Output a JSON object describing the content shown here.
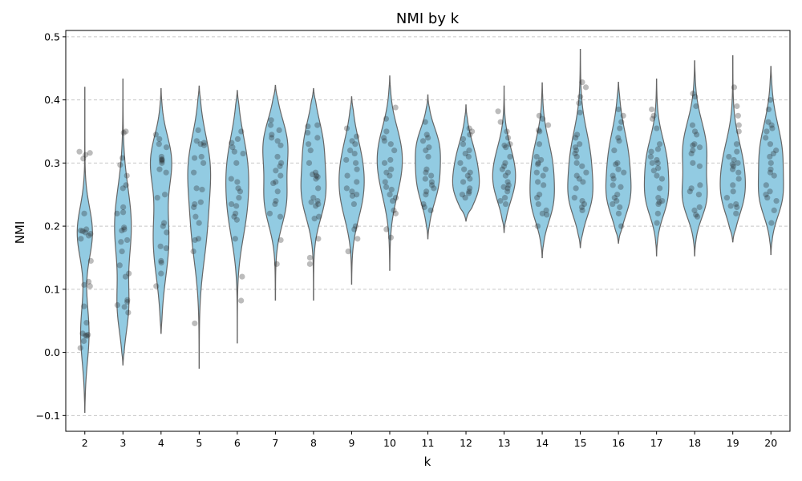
{
  "chart_data": {
    "type": "violin",
    "title": "NMI by k",
    "xlabel": "k",
    "ylabel": "NMI",
    "categories": [
      "2",
      "3",
      "4",
      "5",
      "6",
      "7",
      "8",
      "9",
      "10",
      "11",
      "12",
      "13",
      "14",
      "15",
      "16",
      "17",
      "18",
      "19",
      "20"
    ],
    "ylim": [
      -0.125,
      0.51
    ],
    "yticks": [
      -0.1,
      0.0,
      0.1,
      0.2,
      0.3,
      0.4,
      0.5
    ],
    "ytick_labels": [
      "−0.1",
      "0.0",
      "0.1",
      "0.2",
      "0.3",
      "0.4",
      "0.5"
    ],
    "grid": "y-dashed",
    "colors": {
      "violin_fill": "#92cbe2",
      "violin_edge": "#666666",
      "points": "#222222"
    },
    "violins": [
      {
        "k": "2",
        "min": -0.095,
        "max": 0.42,
        "modes": [
          [
            0.19,
            0.04,
            1.0
          ],
          [
            0.03,
            0.045,
            0.55
          ]
        ],
        "maxw": 0.2
      },
      {
        "k": "3",
        "min": -0.02,
        "max": 0.433,
        "modes": [
          [
            0.2,
            0.06,
            1.0
          ],
          [
            0.07,
            0.04,
            0.6
          ]
        ],
        "maxw": 0.22
      },
      {
        "k": "4",
        "min": 0.03,
        "max": 0.418,
        "modes": [
          [
            0.305,
            0.04,
            1.0
          ],
          [
            0.18,
            0.06,
            0.8
          ]
        ],
        "maxw": 0.28
      },
      {
        "k": "5",
        "min": -0.025,
        "max": 0.422,
        "modes": [
          [
            0.3,
            0.05,
            1.0
          ],
          [
            0.2,
            0.06,
            0.8
          ]
        ],
        "maxw": 0.3
      },
      {
        "k": "6",
        "min": 0.015,
        "max": 0.415,
        "modes": [
          [
            0.3,
            0.05,
            1.0
          ],
          [
            0.22,
            0.05,
            0.85
          ]
        ],
        "maxw": 0.3
      },
      {
        "k": "7",
        "min": 0.083,
        "max": 0.423,
        "modes": [
          [
            0.33,
            0.04,
            1.0
          ],
          [
            0.24,
            0.04,
            0.9
          ]
        ],
        "maxw": 0.33
      },
      {
        "k": "8",
        "min": 0.083,
        "max": 0.418,
        "modes": [
          [
            0.25,
            0.04,
            1.0
          ],
          [
            0.33,
            0.04,
            0.8
          ]
        ],
        "maxw": 0.33
      },
      {
        "k": "9",
        "min": 0.108,
        "max": 0.405,
        "modes": [
          [
            0.3,
            0.045,
            1.0
          ],
          [
            0.24,
            0.04,
            0.8
          ]
        ],
        "maxw": 0.33
      },
      {
        "k": "10",
        "min": 0.13,
        "max": 0.438,
        "modes": [
          [
            0.28,
            0.045,
            1.0
          ],
          [
            0.33,
            0.04,
            0.8
          ]
        ],
        "maxw": 0.33
      },
      {
        "k": "11",
        "min": 0.18,
        "max": 0.408,
        "modes": [
          [
            0.27,
            0.035,
            1.0
          ],
          [
            0.33,
            0.03,
            0.9
          ]
        ],
        "maxw": 0.33
      },
      {
        "k": "12",
        "min": 0.208,
        "max": 0.392,
        "modes": [
          [
            0.3,
            0.035,
            1.0
          ],
          [
            0.255,
            0.025,
            0.8
          ]
        ],
        "maxw": 0.35
      },
      {
        "k": "13",
        "min": 0.19,
        "max": 0.422,
        "modes": [
          [
            0.3,
            0.035,
            1.0
          ],
          [
            0.26,
            0.03,
            0.8
          ]
        ],
        "maxw": 0.3
      },
      {
        "k": "14",
        "min": 0.15,
        "max": 0.427,
        "modes": [
          [
            0.29,
            0.045,
            1.0
          ],
          [
            0.23,
            0.03,
            0.6
          ]
        ],
        "maxw": 0.32
      },
      {
        "k": "15",
        "min": 0.166,
        "max": 0.48,
        "modes": [
          [
            0.3,
            0.05,
            1.0
          ],
          [
            0.24,
            0.03,
            0.6
          ]
        ],
        "maxw": 0.33
      },
      {
        "k": "16",
        "min": 0.173,
        "max": 0.428,
        "modes": [
          [
            0.3,
            0.05,
            1.0
          ],
          [
            0.24,
            0.03,
            0.6
          ]
        ],
        "maxw": 0.33
      },
      {
        "k": "17",
        "min": 0.153,
        "max": 0.433,
        "modes": [
          [
            0.3,
            0.04,
            1.0
          ],
          [
            0.24,
            0.03,
            0.75
          ]
        ],
        "maxw": 0.32
      },
      {
        "k": "18",
        "min": 0.153,
        "max": 0.462,
        "modes": [
          [
            0.32,
            0.045,
            1.0
          ],
          [
            0.24,
            0.03,
            0.8
          ]
        ],
        "maxw": 0.33
      },
      {
        "k": "19",
        "min": 0.175,
        "max": 0.47,
        "modes": [
          [
            0.29,
            0.045,
            1.0
          ],
          [
            0.24,
            0.03,
            0.5
          ]
        ],
        "maxw": 0.33
      },
      {
        "k": "20",
        "min": 0.155,
        "max": 0.453,
        "modes": [
          [
            0.31,
            0.05,
            1.0
          ],
          [
            0.24,
            0.03,
            0.6
          ]
        ],
        "maxw": 0.33
      }
    ],
    "points": {
      "2": [
        0.316,
        0.318,
        0.313,
        0.307,
        0.22,
        0.195,
        0.193,
        0.192,
        0.19,
        0.188,
        0.185,
        0.18,
        0.145,
        0.112,
        0.107,
        0.105,
        0.073,
        0.047,
        0.03,
        0.028,
        0.027,
        0.026,
        0.018,
        0.007
      ],
      "3": [
        0.35,
        0.348,
        0.308,
        0.297,
        0.28,
        0.265,
        0.26,
        0.23,
        0.222,
        0.22,
        0.198,
        0.195,
        0.193,
        0.178,
        0.175,
        0.16,
        0.138,
        0.125,
        0.12,
        0.083,
        0.08,
        0.075,
        0.072,
        0.063
      ],
      "4": [
        0.345,
        0.338,
        0.33,
        0.325,
        0.31,
        0.306,
        0.305,
        0.303,
        0.3,
        0.29,
        0.285,
        0.25,
        0.245,
        0.205,
        0.2,
        0.19,
        0.168,
        0.165,
        0.145,
        0.142,
        0.125,
        0.105
      ],
      "5": [
        0.352,
        0.335,
        0.332,
        0.33,
        0.328,
        0.31,
        0.308,
        0.3,
        0.285,
        0.26,
        0.258,
        0.238,
        0.235,
        0.23,
        0.215,
        0.205,
        0.18,
        0.178,
        0.16,
        0.046
      ],
      "6": [
        0.35,
        0.338,
        0.332,
        0.325,
        0.318,
        0.315,
        0.3,
        0.275,
        0.27,
        0.26,
        0.255,
        0.245,
        0.235,
        0.232,
        0.22,
        0.215,
        0.21,
        0.18,
        0.12,
        0.082
      ],
      "7": [
        0.368,
        0.36,
        0.352,
        0.345,
        0.34,
        0.335,
        0.328,
        0.31,
        0.3,
        0.295,
        0.288,
        0.28,
        0.27,
        0.268,
        0.255,
        0.24,
        0.235,
        0.22,
        0.215,
        0.178,
        0.14
      ],
      "8": [
        0.36,
        0.358,
        0.348,
        0.34,
        0.33,
        0.32,
        0.3,
        0.285,
        0.282,
        0.28,
        0.278,
        0.275,
        0.26,
        0.245,
        0.24,
        0.238,
        0.235,
        0.232,
        0.215,
        0.212,
        0.18,
        0.15,
        0.14
      ],
      "9": [
        0.355,
        0.342,
        0.335,
        0.33,
        0.32,
        0.315,
        0.305,
        0.3,
        0.29,
        0.28,
        0.27,
        0.26,
        0.255,
        0.25,
        0.248,
        0.235,
        0.2,
        0.195,
        0.18,
        0.16
      ],
      "10": [
        0.388,
        0.37,
        0.35,
        0.34,
        0.335,
        0.33,
        0.32,
        0.305,
        0.3,
        0.29,
        0.285,
        0.28,
        0.27,
        0.262,
        0.258,
        0.25,
        0.245,
        0.24,
        0.225,
        0.22,
        0.195,
        0.182
      ],
      "11": [
        0.365,
        0.345,
        0.34,
        0.335,
        0.325,
        0.32,
        0.31,
        0.29,
        0.285,
        0.28,
        0.275,
        0.27,
        0.265,
        0.26,
        0.255,
        0.25,
        0.235,
        0.23,
        0.225
      ],
      "12": [
        0.355,
        0.35,
        0.345,
        0.338,
        0.33,
        0.32,
        0.315,
        0.31,
        0.3,
        0.29,
        0.285,
        0.28,
        0.275,
        0.27,
        0.26,
        0.255,
        0.252,
        0.25,
        0.245
      ],
      "13": [
        0.382,
        0.365,
        0.35,
        0.34,
        0.33,
        0.328,
        0.325,
        0.31,
        0.3,
        0.295,
        0.29,
        0.285,
        0.28,
        0.27,
        0.265,
        0.262,
        0.26,
        0.255,
        0.245,
        0.24,
        0.235
      ],
      "14": [
        0.375,
        0.37,
        0.36,
        0.352,
        0.35,
        0.33,
        0.31,
        0.305,
        0.3,
        0.298,
        0.29,
        0.285,
        0.28,
        0.27,
        0.265,
        0.25,
        0.245,
        0.235,
        0.225,
        0.22,
        0.218,
        0.2
      ],
      "15": [
        0.428,
        0.42,
        0.405,
        0.395,
        0.38,
        0.345,
        0.34,
        0.33,
        0.325,
        0.32,
        0.315,
        0.31,
        0.3,
        0.295,
        0.285,
        0.28,
        0.275,
        0.27,
        0.26,
        0.245,
        0.24,
        0.235,
        0.23,
        0.225
      ],
      "16": [
        0.385,
        0.375,
        0.365,
        0.355,
        0.34,
        0.335,
        0.32,
        0.3,
        0.298,
        0.29,
        0.285,
        0.28,
        0.275,
        0.265,
        0.262,
        0.25,
        0.245,
        0.24,
        0.235,
        0.23,
        0.22,
        0.2
      ],
      "17": [
        0.385,
        0.375,
        0.37,
        0.355,
        0.33,
        0.322,
        0.318,
        0.31,
        0.305,
        0.3,
        0.3,
        0.292,
        0.288,
        0.28,
        0.275,
        0.26,
        0.245,
        0.24,
        0.238,
        0.235,
        0.22,
        0.205
      ],
      "18": [
        0.41,
        0.405,
        0.39,
        0.36,
        0.35,
        0.345,
        0.33,
        0.328,
        0.325,
        0.32,
        0.315,
        0.3,
        0.295,
        0.265,
        0.26,
        0.255,
        0.25,
        0.23,
        0.225,
        0.218,
        0.215
      ],
      "19": [
        0.42,
        0.39,
        0.375,
        0.36,
        0.35,
        0.33,
        0.318,
        0.31,
        0.305,
        0.3,
        0.298,
        0.295,
        0.29,
        0.285,
        0.275,
        0.265,
        0.255,
        0.245,
        0.235,
        0.232,
        0.23,
        0.22
      ],
      "20": [
        0.4,
        0.385,
        0.365,
        0.36,
        0.355,
        0.35,
        0.34,
        0.33,
        0.32,
        0.315,
        0.31,
        0.3,
        0.29,
        0.285,
        0.28,
        0.265,
        0.255,
        0.25,
        0.245,
        0.24,
        0.225,
        0.205
      ]
    }
  }
}
